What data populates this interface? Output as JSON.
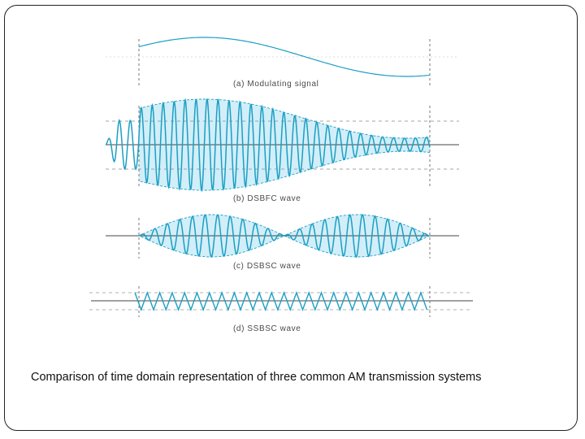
{
  "panels": [
    {
      "id": "a",
      "caption": "(a)  Modulating signal"
    },
    {
      "id": "b",
      "caption": "(b)  DSBFC wave"
    },
    {
      "id": "c",
      "caption": "(c)  DSBSC wave"
    },
    {
      "id": "d",
      "caption": "(d)  SSBSC wave"
    }
  ],
  "slide": {
    "caption": "Comparison of time domain representation of three common AM transmission systems"
  },
  "colors": {
    "wave": "#1b9fc4",
    "envelope_fill": "#d2eef8",
    "axis": "#444444",
    "guide": "#777777"
  }
}
